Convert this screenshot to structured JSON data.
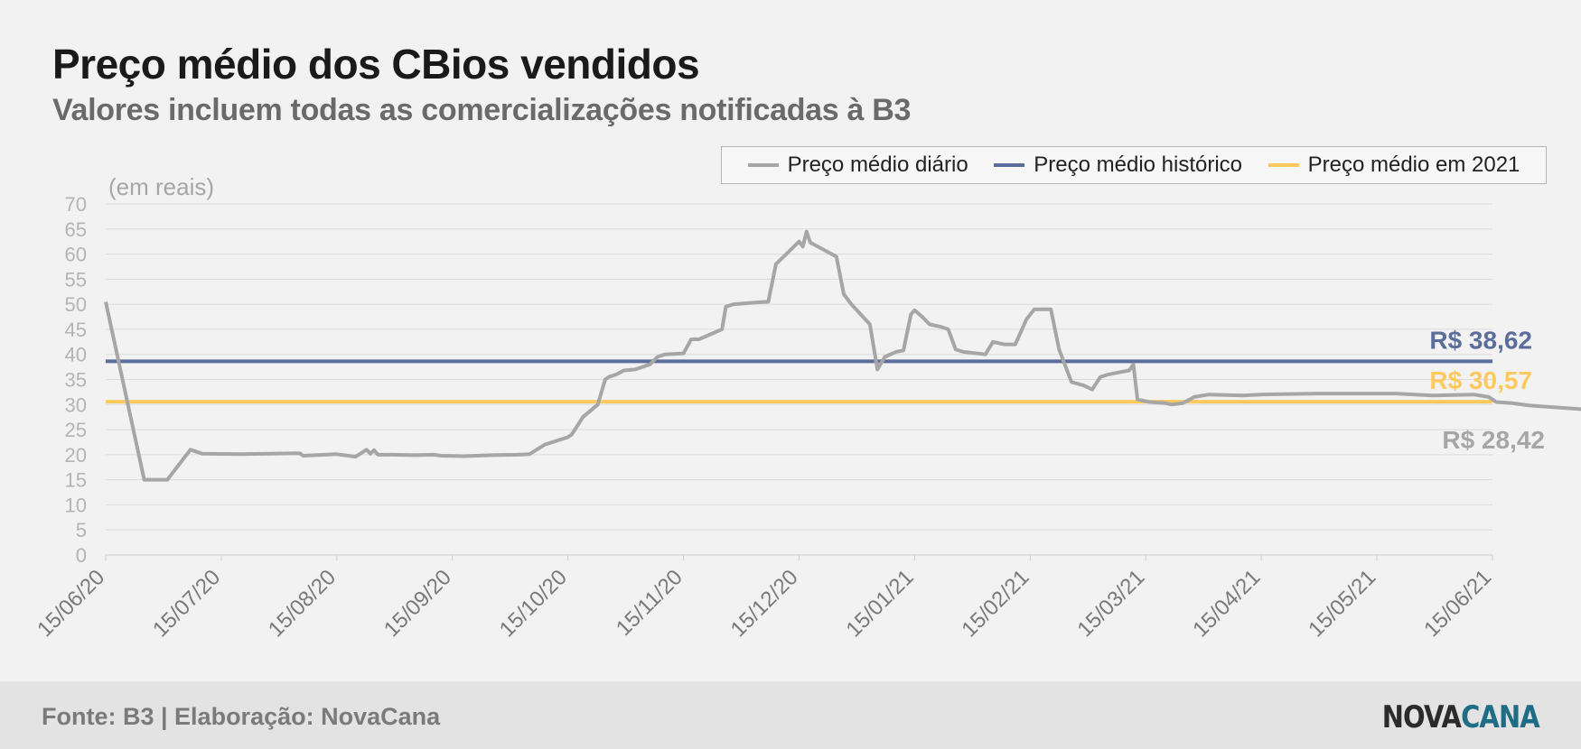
{
  "title": "Preço médio dos CBios vendidos",
  "subtitle": "Valores incluem todas as comercializações notificadas à B3",
  "footer": {
    "source": "Fonte: B3 | Elaboração: NovaCana",
    "logo_part1": "NOVA",
    "logo_part2": "CANA"
  },
  "colors": {
    "daily": "#a6a6a6",
    "historical": "#5b6d9a",
    "year2021": "#fdc95f",
    "grid": "#dcdcdc",
    "tick_text": "#b4b4b4"
  },
  "chart_data": {
    "type": "line",
    "ylabel": "(em reais)",
    "ylim": [
      0,
      70
    ],
    "yticks": [
      0,
      5,
      10,
      15,
      20,
      25,
      30,
      35,
      40,
      45,
      50,
      55,
      60,
      65,
      70
    ],
    "xlim": [
      "15/06/20",
      "15/06/21"
    ],
    "xticks": [
      "15/06/20",
      "15/07/20",
      "15/08/20",
      "15/09/20",
      "15/10/20",
      "15/11/20",
      "15/12/20",
      "15/01/21",
      "15/02/21",
      "15/03/21",
      "15/04/21",
      "15/05/21",
      "15/06/21"
    ],
    "legend_position": "top-right",
    "series": [
      {
        "name": "Preço médio diário",
        "color": "#a6a6a6",
        "end_label": "R$ 28,42",
        "points": [
          [
            "15/06/20",
            50.5
          ],
          [
            "25/06/20",
            15.0
          ],
          [
            "01/07/20",
            15.0
          ],
          [
            "04/07/20",
            18.0
          ],
          [
            "07/07/20",
            21.0
          ],
          [
            "10/07/20",
            20.2
          ],
          [
            "20/07/20",
            20.1
          ],
          [
            "05/08/20",
            20.3
          ],
          [
            "06/08/20",
            19.8
          ],
          [
            "15/08/20",
            20.1
          ],
          [
            "20/08/20",
            19.6
          ],
          [
            "23/08/20",
            21.0
          ],
          [
            "24/08/20",
            20.2
          ],
          [
            "25/08/20",
            20.9
          ],
          [
            "26/08/20",
            20.0
          ],
          [
            "30/08/20",
            20.0
          ],
          [
            "05/09/20",
            19.9
          ],
          [
            "10/09/20",
            20.0
          ],
          [
            "12/09/20",
            19.8
          ],
          [
            "18/09/20",
            19.7
          ],
          [
            "25/09/20",
            19.9
          ],
          [
            "02/10/20",
            20.0
          ],
          [
            "05/10/20",
            20.1
          ],
          [
            "09/10/20",
            22.0
          ],
          [
            "15/10/20",
            23.5
          ],
          [
            "16/10/20",
            24.0
          ],
          [
            "19/10/20",
            27.5
          ],
          [
            "23/10/20",
            30.0
          ],
          [
            "25/10/20",
            35.0
          ],
          [
            "26/10/20",
            35.5
          ],
          [
            "28/10/20",
            36.0
          ],
          [
            "30/10/20",
            36.8
          ],
          [
            "02/11/20",
            37.0
          ],
          [
            "04/11/20",
            37.5
          ],
          [
            "06/11/20",
            38.0
          ],
          [
            "08/11/20",
            39.5
          ],
          [
            "10/11/20",
            40.0
          ],
          [
            "15/11/20",
            40.2
          ],
          [
            "17/11/20",
            43.0
          ],
          [
            "19/11/20",
            43.0
          ],
          [
            "25/11/20",
            45.0
          ],
          [
            "26/11/20",
            49.5
          ],
          [
            "28/11/20",
            50.0
          ],
          [
            "05/12/20",
            50.4
          ],
          [
            "07/12/20",
            50.5
          ],
          [
            "09/12/20",
            58.0
          ],
          [
            "13/12/20",
            61.0
          ],
          [
            "15/12/20",
            62.5
          ],
          [
            "16/12/20",
            61.5
          ],
          [
            "17/12/20",
            64.5
          ],
          [
            "18/12/20",
            62.3
          ],
          [
            "25/12/20",
            59.5
          ],
          [
            "27/12/20",
            52.0
          ],
          [
            "29/12/20",
            50.0
          ],
          [
            "03/01/21",
            46.0
          ],
          [
            "05/01/21",
            37.0
          ],
          [
            "07/01/21",
            39.5
          ],
          [
            "10/01/21",
            40.5
          ],
          [
            "12/01/21",
            40.8
          ],
          [
            "14/01/21",
            48.0
          ],
          [
            "15/01/21",
            48.8
          ],
          [
            "17/01/21",
            47.5
          ],
          [
            "19/01/21",
            46.0
          ],
          [
            "22/01/21",
            45.5
          ],
          [
            "24/01/21",
            45.0
          ],
          [
            "26/01/21",
            41.0
          ],
          [
            "28/01/21",
            40.5
          ],
          [
            "03/02/21",
            40.0
          ],
          [
            "05/02/21",
            42.5
          ],
          [
            "08/02/21",
            42.0
          ],
          [
            "11/02/21",
            42.0
          ],
          [
            "14/02/21",
            47.0
          ],
          [
            "16/02/21",
            49.0
          ],
          [
            "20/02/21",
            49.0
          ],
          [
            "22/02/21",
            41.0
          ],
          [
            "25/02/21",
            34.5
          ],
          [
            "28/02/21",
            33.8
          ],
          [
            "02/03/21",
            33.0
          ],
          [
            "04/03/21",
            35.5
          ],
          [
            "06/03/21",
            36.0
          ],
          [
            "09/03/21",
            36.5
          ],
          [
            "11/03/21",
            36.8
          ],
          [
            "12/03/21",
            38.0
          ],
          [
            "13/03/21",
            31.0
          ],
          [
            "16/03/21",
            30.5
          ],
          [
            "20/03/21",
            30.3
          ],
          [
            "22/03/21",
            30.0
          ],
          [
            "25/03/21",
            30.3
          ],
          [
            "28/03/21",
            31.5
          ],
          [
            "01/04/21",
            32.0
          ],
          [
            "10/04/21",
            31.8
          ],
          [
            "15/04/21",
            32.0
          ],
          [
            "30/04/21",
            32.2
          ],
          [
            "20/05/21",
            32.2
          ],
          [
            "30/05/21",
            31.8
          ],
          [
            "10/06/21",
            32.0
          ],
          [
            "14/06/21",
            31.5
          ],
          [
            "16/06/21",
            30.5
          ],
          [
            "20/06/21",
            30.3
          ],
          [
            "25/06/21",
            29.8
          ],
          [
            "01/07/21",
            29.5
          ],
          [
            "10/07/21",
            29.0
          ],
          [
            "15/07/21",
            28.6
          ],
          [
            "25/07/21",
            28.5
          ],
          [
            "26/07/21",
            28.2
          ],
          [
            "28/07/21",
            28.8
          ],
          [
            "05/08/21",
            29.0
          ],
          [
            "10/08/21",
            30.5
          ],
          [
            "15/08/21",
            30.8
          ],
          [
            "25/08/21",
            30.8
          ],
          [
            "01/09/21",
            30.5
          ],
          [
            "05/09/21",
            31.0
          ],
          [
            "20/09/21",
            30.8
          ],
          [
            "30/09/21",
            30.5
          ],
          [
            "02/10/21",
            31.2
          ],
          [
            "05/10/21",
            30.5
          ],
          [
            "20/10/21",
            30.4
          ],
          [
            "01/11/21",
            30.4
          ],
          [
            "15/11/21",
            30.3
          ],
          [
            "25/11/21",
            30.0
          ],
          [
            "30/11/21",
            29.5
          ],
          [
            "10/12/21",
            29.5
          ],
          [
            "12/12/21",
            28.5
          ],
          [
            "17/12/21",
            28.8
          ],
          [
            "19/12/21",
            28.42
          ]
        ]
      },
      {
        "name": "Preço médio histórico",
        "color": "#5b6d9a",
        "value": 38.62,
        "end_label": "R$ 38,62"
      },
      {
        "name": "Preço médio em 2021",
        "color": "#fdc95f",
        "value": 30.57,
        "end_label": "R$ 30,57"
      }
    ]
  }
}
